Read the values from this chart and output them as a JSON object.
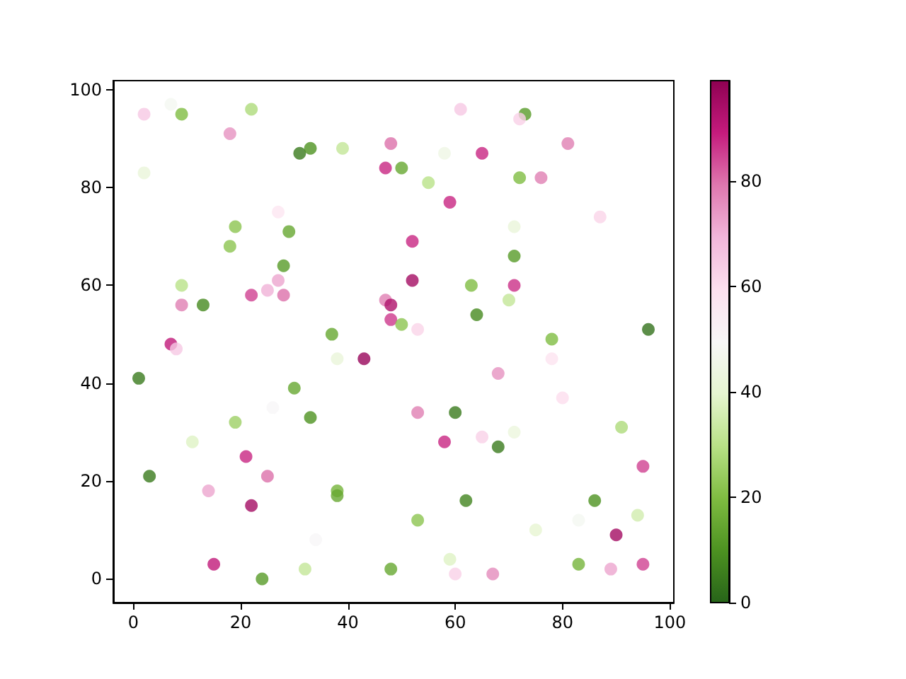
{
  "chart_data": {
    "type": "scatter",
    "marker": "circle",
    "grid": false,
    "x": [
      2,
      7,
      9,
      22,
      18,
      2,
      31,
      33,
      39,
      48,
      47,
      50,
      55,
      58,
      61,
      65,
      73,
      72,
      72,
      76,
      81,
      59,
      87,
      27,
      19,
      29,
      18,
      28,
      27,
      25,
      22,
      28,
      9,
      9,
      13,
      7,
      8,
      37,
      38,
      43,
      47,
      48,
      48,
      50,
      53,
      52,
      52,
      63,
      64,
      70,
      71,
      71,
      71,
      78,
      96,
      1,
      30,
      26,
      33,
      19,
      11,
      21,
      25,
      3,
      14,
      22,
      38,
      38,
      34,
      15,
      24,
      32,
      48,
      53,
      60,
      58,
      65,
      68,
      68,
      71,
      62,
      53,
      59,
      60,
      67,
      75,
      78,
      80,
      86,
      83,
      83,
      91,
      94,
      90,
      89,
      95,
      95
    ],
    "values": [
      95,
      97,
      95,
      96,
      91,
      83,
      87,
      88,
      88,
      89,
      84,
      84,
      81,
      87,
      96,
      87,
      95,
      94,
      82,
      82,
      89,
      77,
      74,
      75,
      72,
      71,
      68,
      64,
      61,
      59,
      58,
      58,
      60,
      56,
      56,
      48,
      47,
      50,
      45,
      45,
      57,
      56,
      53,
      52,
      51,
      69,
      61,
      60,
      54,
      57,
      60,
      66,
      72,
      49,
      51,
      41,
      39,
      35,
      33,
      32,
      28,
      25,
      21,
      21,
      18,
      15,
      18,
      17,
      8,
      3,
      0,
      2,
      2,
      34,
      34,
      28,
      29,
      42,
      27,
      30,
      16,
      12,
      4,
      1,
      1,
      10,
      45,
      37,
      16,
      12,
      3,
      31,
      13,
      9,
      2,
      3,
      23
    ],
    "cvalues": [
      65,
      48,
      20,
      28,
      75,
      42,
      5,
      10,
      32,
      80,
      88,
      15,
      30,
      45,
      65,
      88,
      12,
      63,
      20,
      78,
      78,
      88,
      62,
      57,
      22,
      15,
      22,
      12,
      72,
      70,
      85,
      80,
      30,
      78,
      8,
      90,
      65,
      15,
      42,
      97,
      78,
      93,
      86,
      22,
      62,
      88,
      95,
      20,
      8,
      32,
      87,
      12,
      42,
      20,
      3,
      5,
      15,
      50,
      10,
      25,
      38,
      88,
      80,
      5,
      72,
      95,
      18,
      15,
      50,
      90,
      12,
      32,
      15,
      78,
      5,
      88,
      63,
      75,
      5,
      43,
      7,
      22,
      38,
      63,
      76,
      40,
      58,
      60,
      10,
      48,
      18,
      28,
      35,
      95,
      72,
      85,
      85
    ],
    "xlim": [
      -3.75,
      100.75
    ],
    "xticks": [
      0,
      20,
      40,
      60,
      80,
      100
    ],
    "ylim": [
      -4.85,
      101.85
    ],
    "yticks": [
      0,
      20,
      40,
      60,
      80,
      100
    ],
    "clim": [
      0,
      99
    ],
    "cticks": [
      0,
      20,
      40,
      60,
      80
    ]
  }
}
